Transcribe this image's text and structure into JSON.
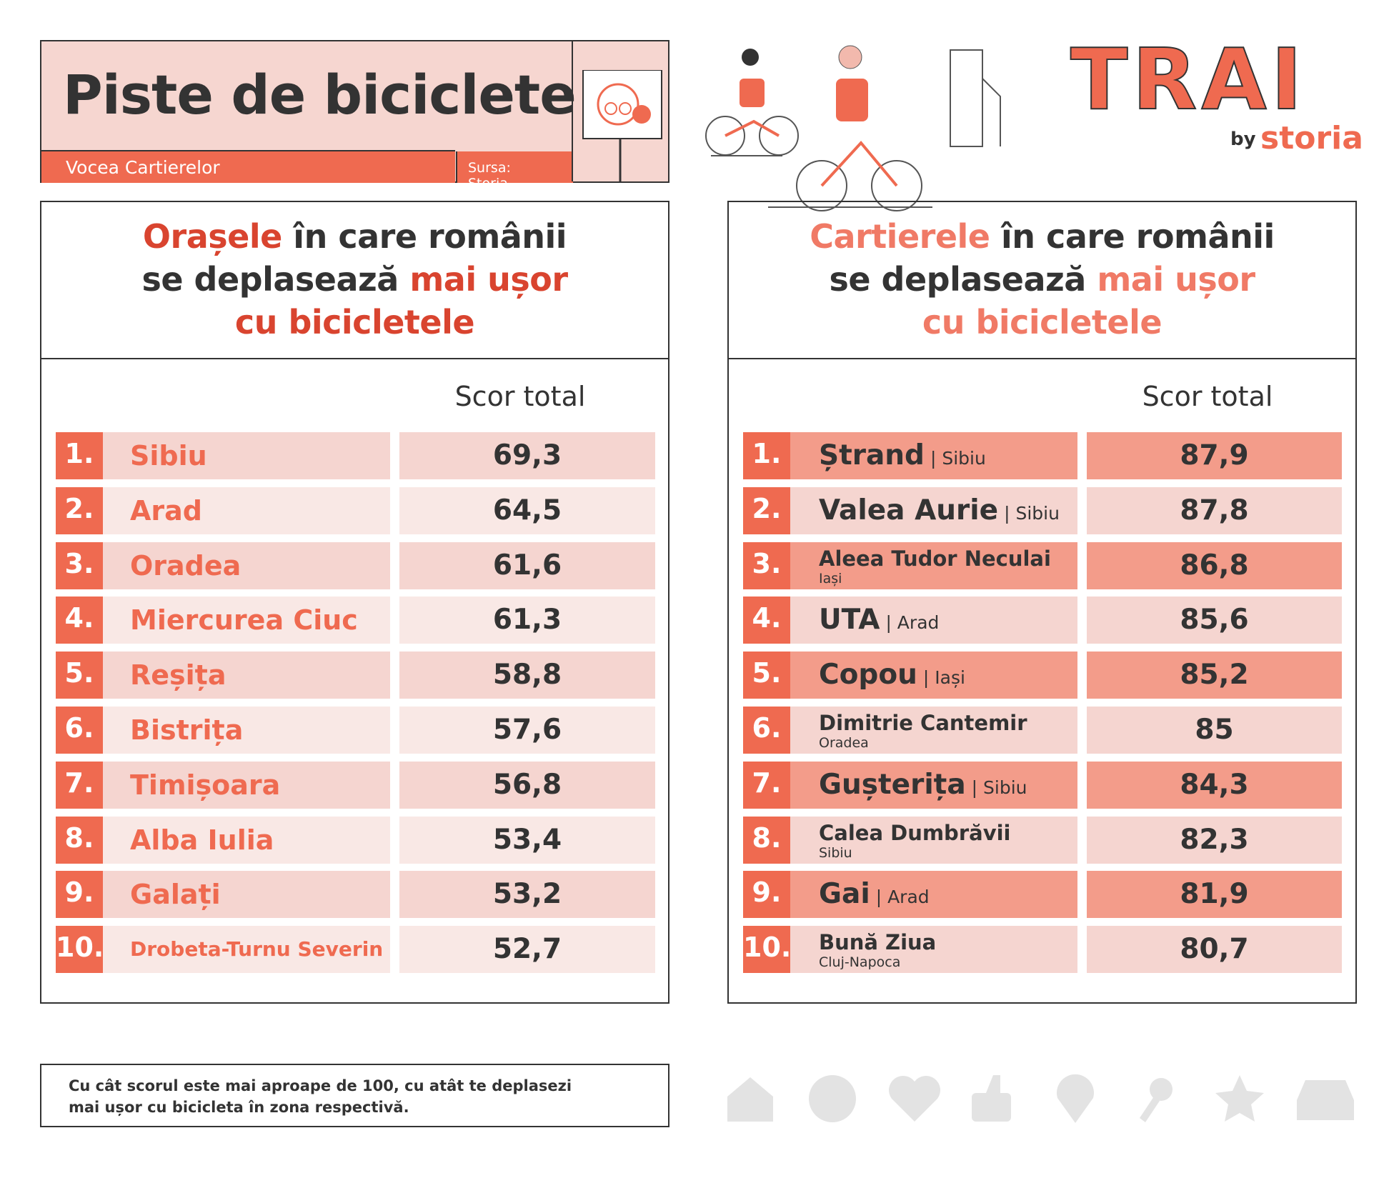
{
  "header": {
    "title": "Piste de biciclete",
    "subtitle": "Vocea Cartierelor",
    "source": "Sursa: Storia"
  },
  "logo": {
    "brand": "TRAI",
    "by": "by",
    "name": "storia"
  },
  "panels": [
    {
      "heading": [
        [
          {
            "text": "Orașele",
            "accent": true
          },
          {
            "text": " în care românii",
            "accent": false
          }
        ],
        [
          {
            "text": "se deplasează ",
            "accent": false
          },
          {
            "text": "mai ușor",
            "accent": true
          }
        ],
        [
          {
            "text": "cu bicicletele",
            "accent": true
          }
        ]
      ],
      "accent_color": "#d9442f",
      "score_header": "Scor total",
      "row_colors": [
        "#f5d5d0",
        "#f9e8e5"
      ],
      "rows": [
        {
          "rank": "1.",
          "name": "Sibiu",
          "score": "69,3"
        },
        {
          "rank": "2.",
          "name": "Arad",
          "score": "64,5"
        },
        {
          "rank": "3.",
          "name": "Oradea",
          "score": "61,6"
        },
        {
          "rank": "4.",
          "name": "Miercurea Ciuc",
          "score": "61,3"
        },
        {
          "rank": "5.",
          "name": "Reșița",
          "score": "58,8"
        },
        {
          "rank": "6.",
          "name": "Bistrița",
          "score": "57,6"
        },
        {
          "rank": "7.",
          "name": "Timișoara",
          "score": "56,8"
        },
        {
          "rank": "8.",
          "name": "Alba Iulia",
          "score": "53,4"
        },
        {
          "rank": "9.",
          "name": "Galați",
          "score": "53,2"
        },
        {
          "rank": "10.",
          "name": "Drobeta-Turnu Severin",
          "score": "52,7"
        }
      ]
    },
    {
      "heading": [
        [
          {
            "text": "Cartierele",
            "accent": true
          },
          {
            "text": " în care românii",
            "accent": false
          }
        ],
        [
          {
            "text": "se deplasează ",
            "accent": false
          },
          {
            "text": "mai ușor",
            "accent": true
          }
        ],
        [
          {
            "text": "cu bicicletele",
            "accent": true
          }
        ]
      ],
      "accent_color": "#f07a66",
      "score_header": "Scor total",
      "row_colors": [
        "#f39c8a",
        "#f5d5d0"
      ],
      "rows": [
        {
          "rank": "1.",
          "name": "Ștrand",
          "place": "| Sibiu",
          "layout": "inline",
          "score": "87,9"
        },
        {
          "rank": "2.",
          "name": "Valea Aurie",
          "place": "| Sibiu",
          "layout": "inline",
          "score": "87,8"
        },
        {
          "rank": "3.",
          "name": "Aleea Tudor Neculai",
          "place": "Iași",
          "layout": "below",
          "score": "86,8"
        },
        {
          "rank": "4.",
          "name": "UTA",
          "place": "| Arad",
          "layout": "inline",
          "score": "85,6"
        },
        {
          "rank": "5.",
          "name": "Copou",
          "place": "| Iași",
          "layout": "inline",
          "score": "85,2"
        },
        {
          "rank": "6.",
          "name": "Dimitrie Cantemir",
          "place": "Oradea",
          "layout": "below",
          "score": "85"
        },
        {
          "rank": "7.",
          "name": "Gușterița",
          "place": "| Sibiu",
          "layout": "inline",
          "score": "84,3"
        },
        {
          "rank": "8.",
          "name": "Calea Dumbrăvii",
          "place": "Sibiu",
          "layout": "below",
          "score": "82,3"
        },
        {
          "rank": "9.",
          "name": "Gai",
          "place": "| Arad",
          "layout": "inline",
          "score": "81,9"
        },
        {
          "rank": "10.",
          "name": "Bună Ziua",
          "place": "Cluj-Napoca",
          "layout": "below",
          "score": "80,7"
        }
      ]
    }
  ],
  "footnote": [
    "Cu cât scorul este mai aproape de 100, cu atât te deplasezi",
    "mai ușor cu bicicleta în zona respectivă."
  ]
}
